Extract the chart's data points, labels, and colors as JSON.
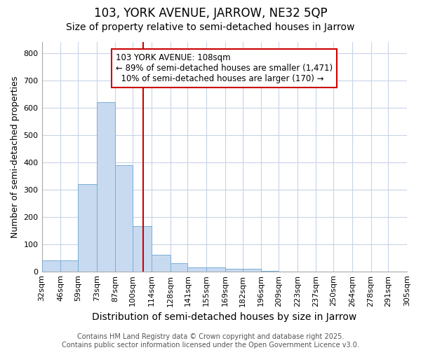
{
  "title": "103, YORK AVENUE, JARROW, NE32 5QP",
  "subtitle": "Size of property relative to semi-detached houses in Jarrow",
  "xlabel": "Distribution of semi-detached houses by size in Jarrow",
  "ylabel": "Number of semi-detached properties",
  "bin_labels": [
    "32sqm",
    "46sqm",
    "59sqm",
    "73sqm",
    "87sqm",
    "100sqm",
    "114sqm",
    "128sqm",
    "141sqm",
    "155sqm",
    "169sqm",
    "182sqm",
    "196sqm",
    "209sqm",
    "223sqm",
    "237sqm",
    "250sqm",
    "264sqm",
    "278sqm",
    "291sqm",
    "305sqm"
  ],
  "bin_edges": [
    32,
    46,
    59,
    73,
    87,
    100,
    114,
    128,
    141,
    155,
    169,
    182,
    196,
    209,
    223,
    237,
    250,
    264,
    278,
    291,
    305
  ],
  "bar_values": [
    40,
    40,
    320,
    620,
    390,
    165,
    60,
    30,
    15,
    15,
    10,
    10,
    2,
    0,
    0,
    0,
    0,
    0,
    0,
    0
  ],
  "bar_color": "#c8daf0",
  "bar_edge_color": "#7aaed6",
  "property_size": 108,
  "property_line_color": "#cc0000",
  "annotation_line1": "103 YORK AVENUE: 108sqm",
  "annotation_line2": "← 89% of semi-detached houses are smaller (1,471)",
  "annotation_line3": "  10% of semi-detached houses are larger (170) →",
  "annotation_box_color": "#ffffff",
  "annotation_box_edge_color": "#cc0000",
  "ylim": [
    0,
    840
  ],
  "yticks": [
    0,
    100,
    200,
    300,
    400,
    500,
    600,
    700,
    800
  ],
  "background_color": "#ffffff",
  "plot_bg_color": "#ffffff",
  "grid_color": "#c8d4e8",
  "footer_text": "Contains HM Land Registry data © Crown copyright and database right 2025.\nContains public sector information licensed under the Open Government Licence v3.0.",
  "title_fontsize": 12,
  "subtitle_fontsize": 10,
  "xlabel_fontsize": 10,
  "ylabel_fontsize": 9,
  "tick_fontsize": 8,
  "annotation_fontsize": 8.5,
  "footer_fontsize": 7
}
